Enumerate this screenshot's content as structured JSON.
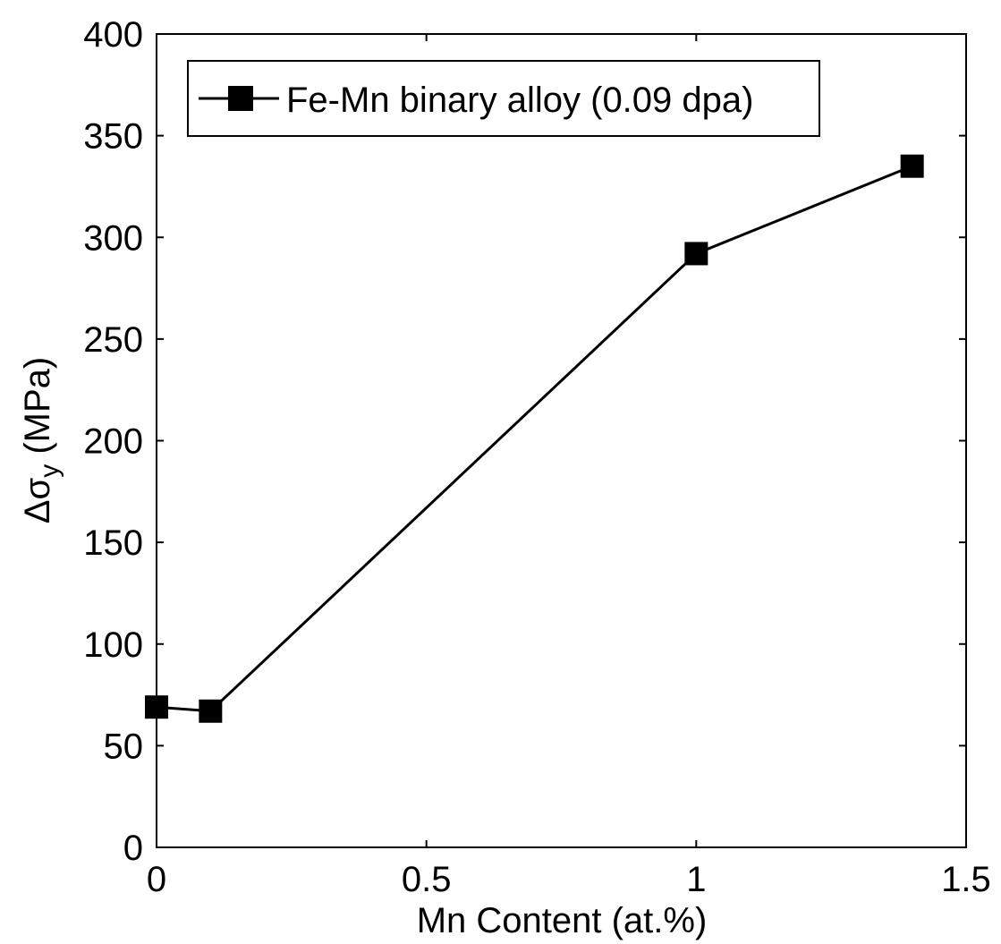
{
  "chart_data": {
    "type": "line",
    "title": "",
    "xlabel": "Mn Content (at.%)",
    "ylabel": {
      "prefix": "Δσ",
      "subscript": "y",
      "suffix": " (MPa)"
    },
    "xlim": [
      0,
      1.5
    ],
    "ylim": [
      0,
      400
    ],
    "x_ticks": [
      0,
      0.5,
      1,
      1.5
    ],
    "x_tick_labels": [
      "0",
      "0.5",
      "1",
      "1.5"
    ],
    "y_ticks": [
      0,
      50,
      100,
      150,
      200,
      250,
      300,
      350,
      400
    ],
    "y_tick_labels": [
      "0",
      "50",
      "100",
      "150",
      "200",
      "250",
      "300",
      "350",
      "400"
    ],
    "grid": false,
    "legend_position": "top-left",
    "series": [
      {
        "name": "Fe-Mn binary alloy (0.09 dpa)",
        "marker": "square",
        "color": "#000000",
        "x": [
          0,
          0.1,
          1,
          1.4
        ],
        "y": [
          69,
          67,
          292,
          335
        ]
      }
    ]
  }
}
